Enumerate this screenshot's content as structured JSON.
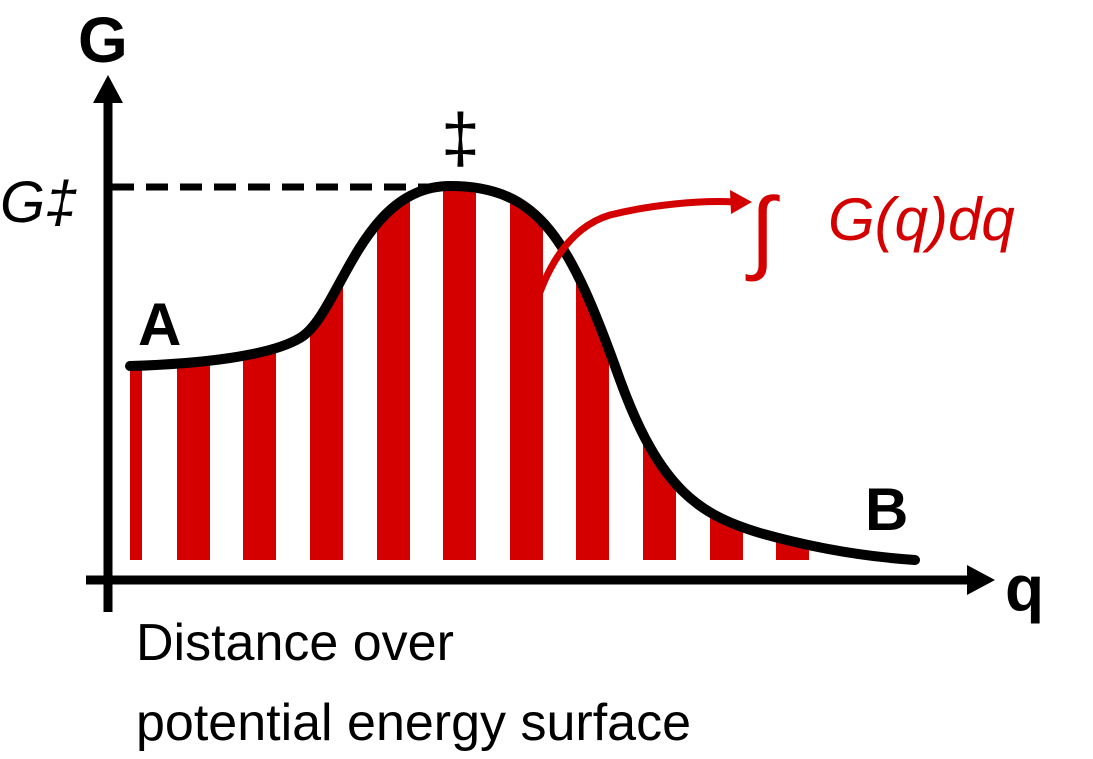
{
  "diagram": {
    "y_axis_label": "G",
    "x_axis_label": "q",
    "transition_state_symbol": "‡",
    "barrier_label": "G‡",
    "start_label": "A",
    "end_label": "B",
    "integral_symbol": "∫",
    "integral_expression": "G(q)dq",
    "caption_line1": "Distance over",
    "caption_line2": "potential energy surface"
  },
  "colors": {
    "curve": "#000000",
    "stripes": "#d40000",
    "annotation": "#d40000",
    "axes": "#000000"
  }
}
